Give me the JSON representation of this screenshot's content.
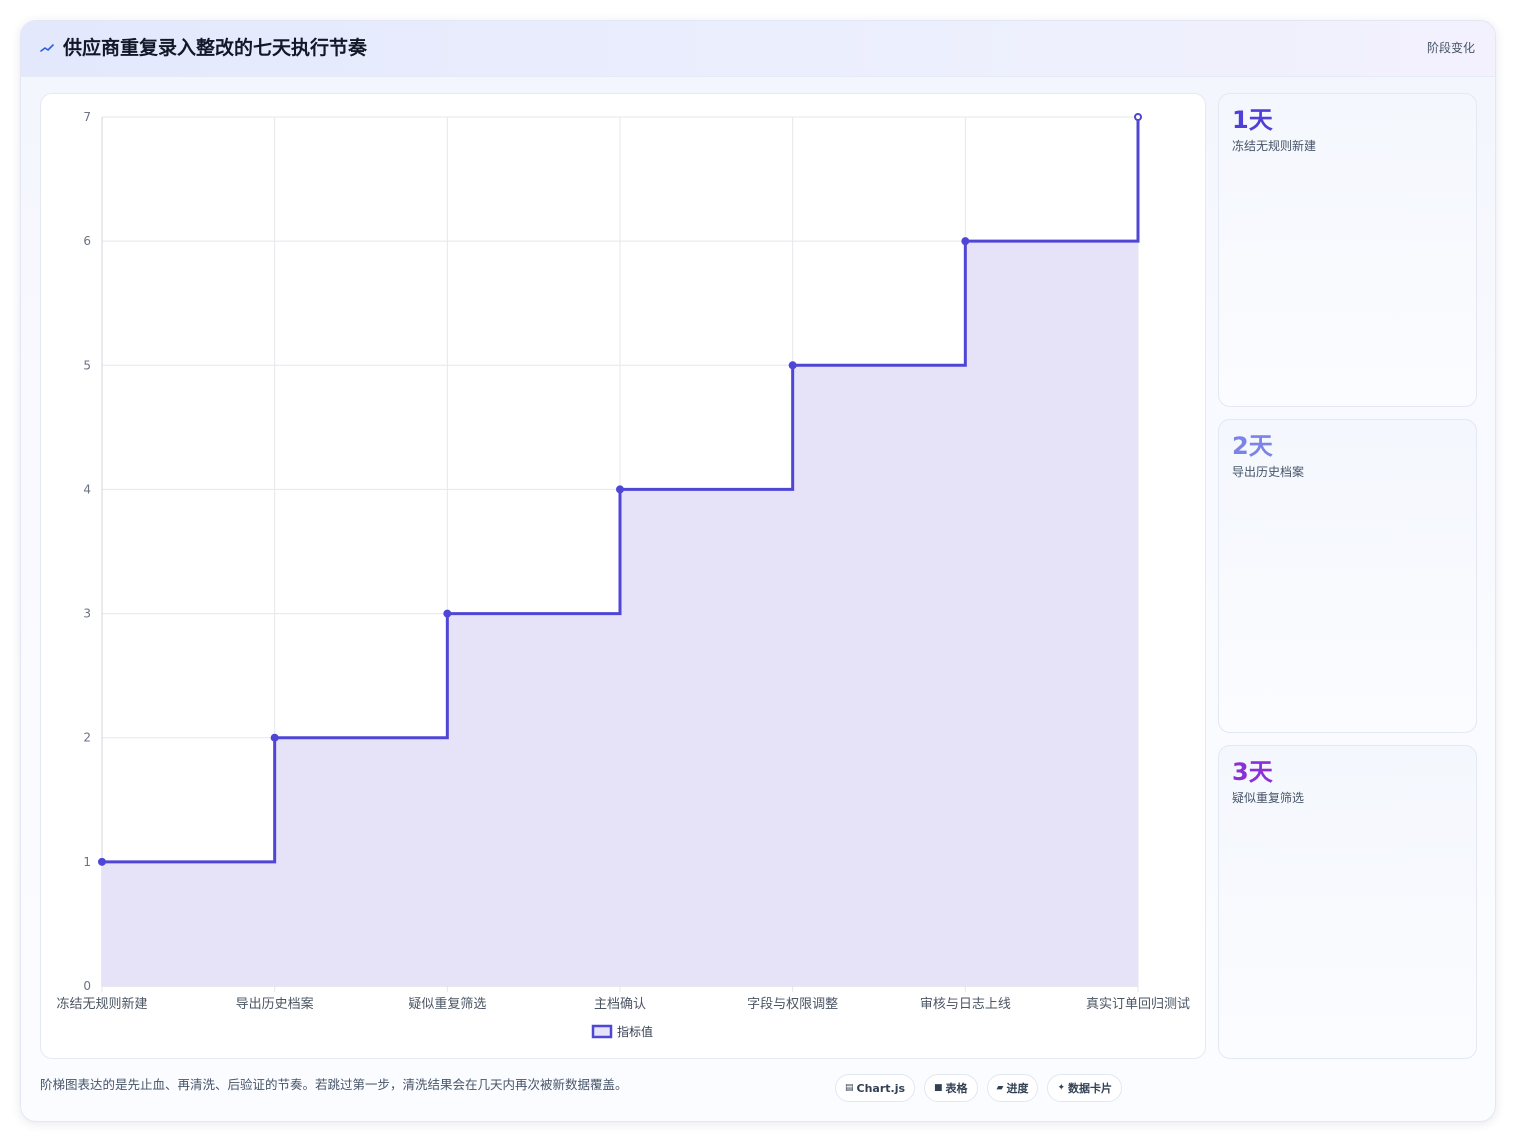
{
  "header": {
    "title": "供应商重复录入整改的七天执行节奏",
    "tag": "阶段变化"
  },
  "chart_data": {
    "type": "line",
    "stepped": true,
    "filled": true,
    "categories": [
      "冻结无规则新建",
      "导出历史档案",
      "疑似重复筛选",
      "主档确认",
      "字段与权限调整",
      "审核与日志上线",
      "真实订单回归测试"
    ],
    "series": [
      {
        "name": "指标值",
        "values": [
          1,
          2,
          3,
          4,
          5,
          6,
          7
        ]
      }
    ],
    "ylim": [
      0,
      7
    ],
    "yticks": [
      0,
      1,
      2,
      3,
      4,
      5,
      6,
      7
    ],
    "grid": true,
    "legend": "bottom",
    "line_color": "#4f46d6",
    "fill_color": "#e6e3f8"
  },
  "side_cards": [
    {
      "value": "1天",
      "label": "冻结无规则新建",
      "color": "#4f3fd8"
    },
    {
      "value": "2天",
      "label": "导出历史档案",
      "color": "#7c83e6"
    },
    {
      "value": "3天",
      "label": "疑似重复筛选",
      "color": "#8b2fd6"
    }
  ],
  "footer": {
    "note": "阶梯图表达的是先止血、再清洗、后验证的节奏。若跳过第一步，清洗结果会在几天内再次被新数据覆盖。",
    "chips": [
      {
        "icon": "▤",
        "label": "Chart.js",
        "icon_name": "chart-icon"
      },
      {
        "icon": "■",
        "label": "表格",
        "icon_name": "table-icon"
      },
      {
        "icon": "▰",
        "label": "进度",
        "icon_name": "progress-icon"
      },
      {
        "icon": "✦",
        "label": "数据卡片",
        "icon_name": "sparkle-icon"
      }
    ]
  }
}
